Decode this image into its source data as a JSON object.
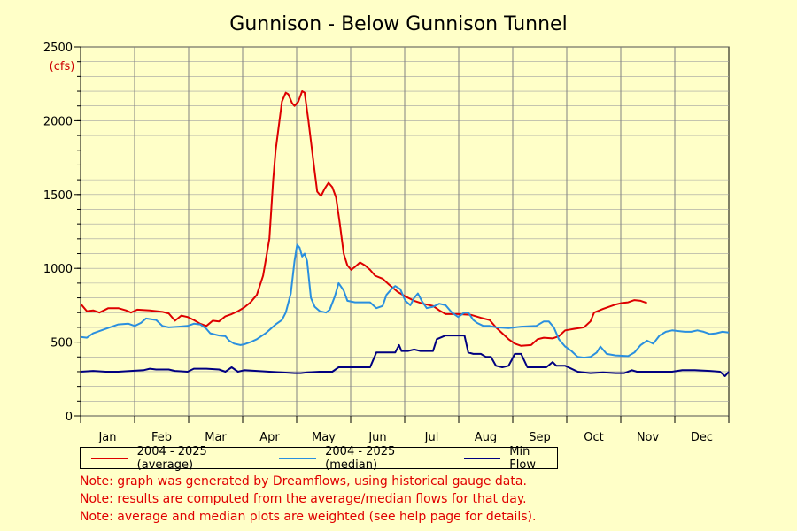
{
  "chart_data": {
    "type": "line",
    "title": "Gunnison - Below Gunnison Tunnel",
    "ylabel": "(cfs)",
    "ylim": [
      0,
      2500
    ],
    "yticks": [
      0,
      500,
      1000,
      1500,
      2000,
      2500
    ],
    "categories": [
      "Jan",
      "Feb",
      "Mar",
      "Apr",
      "May",
      "Jun",
      "Jul",
      "Aug",
      "Sep",
      "Oct",
      "Nov",
      "Dec"
    ],
    "grid": true,
    "legend_position": "bottom",
    "series": [
      {
        "name": "2004 - 2025 (average)",
        "color": "#dd0000",
        "points": [
          [
            0,
            760
          ],
          [
            5,
            710
          ],
          [
            10,
            715
          ],
          [
            15,
            700
          ],
          [
            22,
            730
          ],
          [
            30,
            730
          ],
          [
            36,
            715
          ],
          [
            40,
            700
          ],
          [
            45,
            720
          ],
          [
            55,
            715
          ],
          [
            65,
            705
          ],
          [
            70,
            695
          ],
          [
            75,
            645
          ],
          [
            80,
            680
          ],
          [
            85,
            670
          ],
          [
            90,
            650
          ],
          [
            95,
            625
          ],
          [
            100,
            610
          ],
          [
            105,
            645
          ],
          [
            110,
            640
          ],
          [
            115,
            675
          ],
          [
            120,
            690
          ],
          [
            125,
            710
          ],
          [
            130,
            735
          ],
          [
            135,
            770
          ],
          [
            140,
            820
          ],
          [
            145,
            950
          ],
          [
            150,
            1200
          ],
          [
            153,
            1600
          ],
          [
            155,
            1800
          ],
          [
            158,
            2000
          ],
          [
            160,
            2130
          ],
          [
            163,
            2190
          ],
          [
            165,
            2180
          ],
          [
            168,
            2120
          ],
          [
            170,
            2100
          ],
          [
            173,
            2130
          ],
          [
            176,
            2200
          ],
          [
            178,
            2190
          ],
          [
            181,
            2000
          ],
          [
            185,
            1720
          ],
          [
            188,
            1520
          ],
          [
            191,
            1490
          ],
          [
            194,
            1540
          ],
          [
            197,
            1580
          ],
          [
            200,
            1550
          ],
          [
            203,
            1480
          ],
          [
            206,
            1300
          ],
          [
            209,
            1100
          ],
          [
            212,
            1020
          ],
          [
            215,
            990
          ],
          [
            218,
            1010
          ],
          [
            222,
            1040
          ],
          [
            226,
            1020
          ],
          [
            230,
            990
          ],
          [
            234,
            950
          ],
          [
            240,
            930
          ],
          [
            245,
            890
          ],
          [
            252,
            840
          ],
          [
            258,
            810
          ],
          [
            265,
            780
          ],
          [
            272,
            760
          ],
          [
            280,
            745
          ],
          [
            285,
            715
          ],
          [
            290,
            690
          ],
          [
            300,
            690
          ],
          [
            310,
            685
          ],
          [
            318,
            665
          ],
          [
            325,
            650
          ],
          [
            330,
            600
          ],
          [
            335,
            560
          ],
          [
            340,
            520
          ],
          [
            345,
            490
          ],
          [
            350,
            475
          ],
          [
            358,
            480
          ],
          [
            363,
            520
          ],
          [
            368,
            530
          ],
          [
            375,
            525
          ],
          [
            380,
            540
          ],
          [
            385,
            580
          ],
          [
            392,
            590
          ],
          [
            400,
            600
          ],
          [
            405,
            640
          ],
          [
            408,
            700
          ],
          [
            415,
            725
          ],
          [
            420,
            740
          ],
          [
            425,
            755
          ],
          [
            430,
            765
          ],
          [
            435,
            770
          ],
          [
            440,
            785
          ],
          [
            445,
            780
          ],
          [
            450,
            765
          ]
        ]
      },
      {
        "name": "2004 - 2025 (median)",
        "color": "#2a8fdf",
        "points": [
          [
            0,
            535
          ],
          [
            5,
            530
          ],
          [
            10,
            560
          ],
          [
            15,
            575
          ],
          [
            20,
            590
          ],
          [
            25,
            605
          ],
          [
            30,
            620
          ],
          [
            38,
            625
          ],
          [
            43,
            610
          ],
          [
            48,
            630
          ],
          [
            52,
            660
          ],
          [
            60,
            650
          ],
          [
            65,
            610
          ],
          [
            70,
            600
          ],
          [
            78,
            605
          ],
          [
            85,
            610
          ],
          [
            90,
            625
          ],
          [
            95,
            620
          ],
          [
            100,
            590
          ],
          [
            103,
            560
          ],
          [
            110,
            545
          ],
          [
            115,
            540
          ],
          [
            118,
            510
          ],
          [
            122,
            490
          ],
          [
            127,
            480
          ],
          [
            130,
            485
          ],
          [
            135,
            500
          ],
          [
            140,
            520
          ],
          [
            147,
            560
          ],
          [
            155,
            620
          ],
          [
            160,
            650
          ],
          [
            163,
            700
          ],
          [
            167,
            830
          ],
          [
            170,
            1050
          ],
          [
            172,
            1160
          ],
          [
            174,
            1140
          ],
          [
            176,
            1080
          ],
          [
            178,
            1100
          ],
          [
            180,
            1050
          ],
          [
            183,
            800
          ],
          [
            186,
            740
          ],
          [
            190,
            710
          ],
          [
            195,
            700
          ],
          [
            198,
            720
          ],
          [
            202,
            810
          ],
          [
            205,
            900
          ],
          [
            209,
            850
          ],
          [
            212,
            780
          ],
          [
            218,
            770
          ],
          [
            225,
            770
          ],
          [
            230,
            770
          ],
          [
            235,
            730
          ],
          [
            240,
            745
          ],
          [
            243,
            820
          ],
          [
            247,
            860
          ],
          [
            250,
            880
          ],
          [
            254,
            860
          ],
          [
            258,
            780
          ],
          [
            262,
            750
          ],
          [
            265,
            800
          ],
          [
            268,
            830
          ],
          [
            271,
            780
          ],
          [
            275,
            730
          ],
          [
            280,
            740
          ],
          [
            285,
            760
          ],
          [
            290,
            750
          ],
          [
            295,
            700
          ],
          [
            300,
            670
          ],
          [
            305,
            700
          ],
          [
            308,
            700
          ],
          [
            312,
            650
          ],
          [
            315,
            630
          ],
          [
            320,
            610
          ],
          [
            325,
            610
          ],
          [
            330,
            600
          ],
          [
            340,
            595
          ],
          [
            350,
            605
          ],
          [
            362,
            610
          ],
          [
            368,
            640
          ],
          [
            372,
            640
          ],
          [
            376,
            600
          ],
          [
            380,
            520
          ],
          [
            385,
            470
          ],
          [
            390,
            440
          ],
          [
            395,
            400
          ],
          [
            400,
            395
          ],
          [
            405,
            400
          ],
          [
            410,
            430
          ],
          [
            413,
            470
          ],
          [
            418,
            420
          ],
          [
            425,
            410
          ],
          [
            435,
            405
          ],
          [
            440,
            430
          ],
          [
            445,
            480
          ],
          [
            450,
            510
          ],
          [
            455,
            490
          ],
          [
            460,
            545
          ],
          [
            465,
            570
          ],
          [
            470,
            580
          ],
          [
            480,
            570
          ],
          [
            485,
            570
          ],
          [
            490,
            580
          ],
          [
            495,
            570
          ],
          [
            500,
            555
          ],
          [
            505,
            560
          ],
          [
            510,
            570
          ],
          [
            515,
            565
          ]
        ]
      },
      {
        "name": "Min Flow",
        "color": "#000080",
        "points": [
          [
            0,
            300
          ],
          [
            10,
            305
          ],
          [
            20,
            300
          ],
          [
            30,
            300
          ],
          [
            40,
            305
          ],
          [
            50,
            310
          ],
          [
            55,
            320
          ],
          [
            60,
            315
          ],
          [
            70,
            315
          ],
          [
            75,
            305
          ],
          [
            85,
            300
          ],
          [
            90,
            320
          ],
          [
            100,
            320
          ],
          [
            110,
            315
          ],
          [
            115,
            300
          ],
          [
            120,
            330
          ],
          [
            125,
            300
          ],
          [
            130,
            310
          ],
          [
            140,
            305
          ],
          [
            150,
            300
          ],
          [
            160,
            295
          ],
          [
            170,
            290
          ],
          [
            175,
            290
          ],
          [
            180,
            295
          ],
          [
            190,
            300
          ],
          [
            200,
            300
          ],
          [
            205,
            330
          ],
          [
            215,
            330
          ],
          [
            230,
            330
          ],
          [
            235,
            430
          ],
          [
            245,
            430
          ],
          [
            250,
            430
          ],
          [
            253,
            480
          ],
          [
            255,
            440
          ],
          [
            260,
            440
          ],
          [
            265,
            450
          ],
          [
            270,
            440
          ],
          [
            275,
            440
          ],
          [
            280,
            440
          ],
          [
            283,
            520
          ],
          [
            290,
            545
          ],
          [
            305,
            545
          ],
          [
            308,
            430
          ],
          [
            312,
            420
          ],
          [
            318,
            420
          ],
          [
            322,
            400
          ],
          [
            326,
            400
          ],
          [
            330,
            340
          ],
          [
            335,
            330
          ],
          [
            340,
            340
          ],
          [
            345,
            420
          ],
          [
            350,
            420
          ],
          [
            355,
            330
          ],
          [
            360,
            330
          ],
          [
            370,
            330
          ],
          [
            375,
            365
          ],
          [
            378,
            340
          ],
          [
            385,
            340
          ],
          [
            395,
            300
          ],
          [
            405,
            290
          ],
          [
            415,
            295
          ],
          [
            425,
            290
          ],
          [
            432,
            290
          ],
          [
            438,
            310
          ],
          [
            442,
            300
          ],
          [
            450,
            300
          ],
          [
            460,
            300
          ],
          [
            470,
            300
          ],
          [
            478,
            310
          ],
          [
            488,
            310
          ],
          [
            500,
            305
          ],
          [
            508,
            300
          ],
          [
            512,
            270
          ],
          [
            515,
            300
          ]
        ]
      }
    ],
    "notes": [
      "Note: graph was generated by Dreamflows, using historical gauge data.",
      "Note: results are computed from the average/median flows for that day.",
      "Note: average and median plots are weighted (see help page for details)."
    ]
  }
}
